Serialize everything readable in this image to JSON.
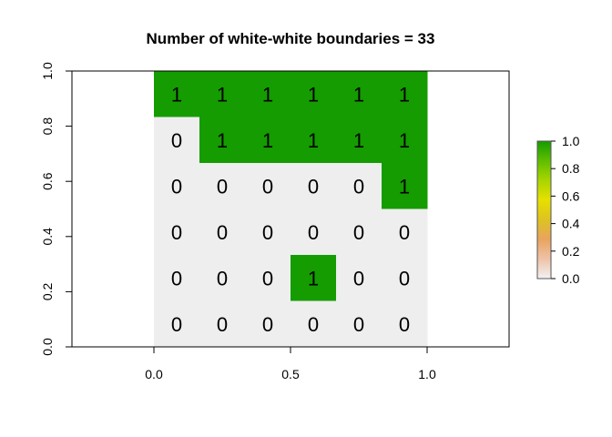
{
  "chart_data": {
    "type": "heatmap",
    "title": "Number of white-white boundaries =  33",
    "xlim": [
      -0.3,
      1.3
    ],
    "ylim": [
      0,
      1
    ],
    "x_ticks": [
      "0.0",
      "0.5",
      "1.0"
    ],
    "y_ticks": [
      "0.0",
      "0.2",
      "0.4",
      "0.6",
      "0.8",
      "1.0"
    ],
    "grid": false,
    "zlim": [
      0,
      1
    ],
    "colors": {
      "zero": "#eeeeee",
      "one": "#149c00"
    },
    "legend": {
      "position": "right",
      "ticks": [
        "0.0",
        "0.2",
        "0.4",
        "0.6",
        "0.8",
        "1.0"
      ],
      "gradient": [
        "#f2f2f2",
        "#eec2a8",
        "#e8a45e",
        "#ddc321",
        "#e6e000",
        "#a9d500",
        "#5fbe00",
        "#149c00"
      ]
    },
    "matrix": [
      [
        1,
        1,
        1,
        1,
        1,
        1
      ],
      [
        0,
        1,
        1,
        1,
        1,
        1
      ],
      [
        0,
        0,
        0,
        0,
        0,
        1
      ],
      [
        0,
        0,
        0,
        0,
        0,
        0
      ],
      [
        0,
        0,
        0,
        1,
        0,
        0
      ],
      [
        0,
        0,
        0,
        0,
        0,
        0
      ]
    ]
  }
}
